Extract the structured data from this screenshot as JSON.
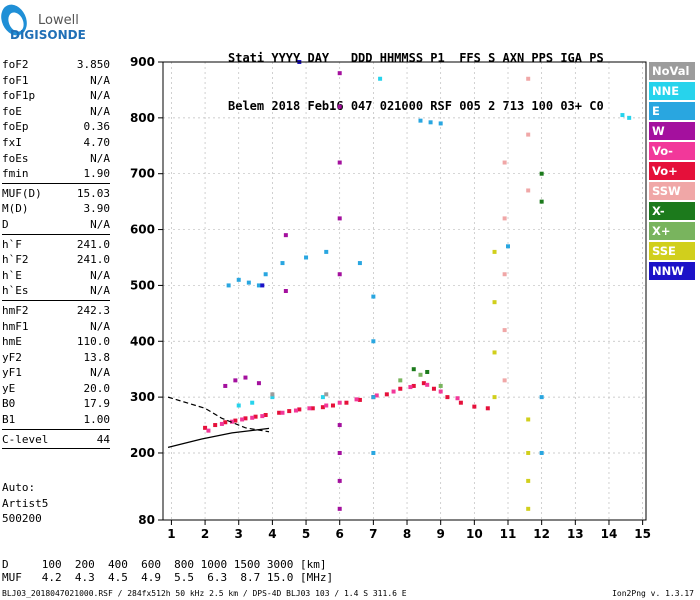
{
  "logo": {
    "top": "Lowell",
    "bottom": "DIGISONDE"
  },
  "header": {
    "labels": "Stati YYYY DAY   DDD HHMMSS P1  FFS S AXN PPS IGA PS",
    "values": "Belem 2018 Feb16 047 021000 RSF 005 2 713 100 03+ C0"
  },
  "params": [
    {
      "name": "foF2",
      "value": "3.850"
    },
    {
      "name": "foF1",
      "value": "N/A"
    },
    {
      "name": "foF1p",
      "value": "N/A"
    },
    {
      "name": "foE",
      "value": "N/A"
    },
    {
      "name": "foEp",
      "value": "0.36"
    },
    {
      "name": "fxI",
      "value": "4.70"
    },
    {
      "name": "foEs",
      "value": "N/A"
    },
    {
      "name": "fmin",
      "value": "1.90"
    },
    {
      "sep": true
    },
    {
      "name": "MUF(D)",
      "value": "15.03"
    },
    {
      "name": "M(D)",
      "value": "3.90"
    },
    {
      "name": "D",
      "value": "N/A"
    },
    {
      "sep": true
    },
    {
      "name": "h`F",
      "value": "241.0"
    },
    {
      "name": "h`F2",
      "value": "241.0"
    },
    {
      "name": "h`E",
      "value": "N/A"
    },
    {
      "name": "h`Es",
      "value": "N/A"
    },
    {
      "sep": true
    },
    {
      "name": "hmF2",
      "value": "242.3"
    },
    {
      "name": "hmF1",
      "value": "N/A"
    },
    {
      "name": "hmE",
      "value": "110.0"
    },
    {
      "name": "yF2",
      "value": "13.8"
    },
    {
      "name": "yF1",
      "value": "N/A"
    },
    {
      "name": "yE",
      "value": "20.0"
    },
    {
      "name": "B0",
      "value": "17.9"
    },
    {
      "name": "B1",
      "value": "1.00"
    },
    {
      "sep": true
    },
    {
      "name": "C-level",
      "value": "44"
    },
    {
      "sep": true
    }
  ],
  "auto": {
    "line1": "Auto:",
    "line2": "Artist5",
    "line3": "500200"
  },
  "legend": [
    {
      "label": "NoVal",
      "color": "#9c9c9c"
    },
    {
      "label": "NNE",
      "color": "#27d3ec"
    },
    {
      "label": "E",
      "color": "#29a6e0"
    },
    {
      "label": "W",
      "color": "#a4109e"
    },
    {
      "label": "Vo-",
      "color": "#f2389a"
    },
    {
      "label": "Vo+",
      "color": "#e5103a"
    },
    {
      "label": "SSW",
      "color": "#f0a7a7"
    },
    {
      "label": "X-",
      "color": "#1c7a1c"
    },
    {
      "label": "X+",
      "color": "#79b45e"
    },
    {
      "label": "SSE",
      "color": "#d1cf1c"
    },
    {
      "label": "NNW",
      "color": "#1c12c8"
    }
  ],
  "freq_table": {
    "d_row": "D     100  200  400  600  800 1000 1500 3000 [km]",
    "muf_row": "MUF   4.2  4.3  4.5  4.9  5.5  6.3  8.7 15.0 [MHz]"
  },
  "footer": {
    "left": "BLJ03_2018047021000.RSF / 284fx512h 50 kHz 2.5 km / DPS-4D BLJ03 103 / 1.4 S 311.6 E",
    "right": "Ion2Png v. 1.3.17"
  },
  "chart_data": {
    "type": "scatter",
    "title": "",
    "xlabel": "",
    "ylabel": "",
    "x_ticks": [
      1,
      2,
      3,
      4,
      5,
      6,
      7,
      8,
      9,
      10,
      11,
      12,
      13,
      14,
      15
    ],
    "y_ticks": [
      80,
      200,
      300,
      400,
      500,
      600,
      700,
      800,
      900
    ],
    "xlim": [
      0.75,
      15.1
    ],
    "ylim": [
      80,
      900
    ],
    "series": [
      {
        "name": "Vo+",
        "color": "#e5103a",
        "points": [
          [
            2.0,
            245
          ],
          [
            2.3,
            250
          ],
          [
            2.6,
            255
          ],
          [
            2.9,
            258
          ],
          [
            3.2,
            262
          ],
          [
            3.5,
            265
          ],
          [
            3.8,
            268
          ],
          [
            4.2,
            272
          ],
          [
            4.5,
            275
          ],
          [
            4.8,
            278
          ],
          [
            5.2,
            280
          ],
          [
            5.5,
            282
          ],
          [
            5.8,
            285
          ],
          [
            6.2,
            290
          ],
          [
            6.6,
            295
          ],
          [
            7.0,
            300
          ],
          [
            7.4,
            305
          ],
          [
            7.8,
            315
          ],
          [
            8.2,
            320
          ],
          [
            8.5,
            325
          ],
          [
            8.8,
            315
          ],
          [
            9.2,
            300
          ],
          [
            9.6,
            290
          ],
          [
            10.0,
            283
          ],
          [
            10.4,
            280
          ]
        ]
      },
      {
        "name": "Vo-",
        "color": "#f2389a",
        "points": [
          [
            2.1,
            240
          ],
          [
            2.5,
            252
          ],
          [
            2.8,
            256
          ],
          [
            3.1,
            260
          ],
          [
            3.4,
            263
          ],
          [
            3.7,
            266
          ],
          [
            4.3,
            272
          ],
          [
            4.7,
            276
          ],
          [
            5.1,
            280
          ],
          [
            5.6,
            285
          ],
          [
            6.0,
            290
          ],
          [
            6.5,
            296
          ],
          [
            7.1,
            303
          ],
          [
            7.6,
            310
          ],
          [
            8.1,
            318
          ],
          [
            8.6,
            322
          ],
          [
            9.0,
            310
          ],
          [
            9.5,
            298
          ]
        ]
      },
      {
        "name": "W",
        "color": "#a4109e",
        "points": [
          [
            2.6,
            320
          ],
          [
            2.9,
            330
          ],
          [
            3.2,
            335
          ],
          [
            3.6,
            325
          ],
          [
            6.0,
            880
          ],
          [
            6.0,
            820
          ],
          [
            6.0,
            720
          ],
          [
            6.0,
            620
          ],
          [
            6.0,
            520
          ],
          [
            6.0,
            250
          ],
          [
            6.0,
            200
          ],
          [
            6.0,
            150
          ],
          [
            6.0,
            100
          ],
          [
            4.4,
            490
          ],
          [
            4.4,
            590
          ]
        ]
      },
      {
        "name": "E",
        "color": "#29a6e0",
        "points": [
          [
            2.7,
            500
          ],
          [
            3.0,
            510
          ],
          [
            3.3,
            505
          ],
          [
            3.6,
            500
          ],
          [
            3.8,
            520
          ],
          [
            4.3,
            540
          ],
          [
            5.0,
            550
          ],
          [
            5.6,
            560
          ],
          [
            6.6,
            540
          ],
          [
            7.0,
            480
          ],
          [
            7.0,
            400
          ],
          [
            7.0,
            300
          ],
          [
            7.0,
            200
          ],
          [
            8.4,
            795
          ],
          [
            8.7,
            792
          ],
          [
            9.0,
            790
          ],
          [
            11.0,
            570
          ],
          [
            12.0,
            300
          ],
          [
            12.0,
            200
          ]
        ]
      },
      {
        "name": "NNE",
        "color": "#27d3ec",
        "points": [
          [
            3.0,
            285
          ],
          [
            3.4,
            290
          ],
          [
            4.0,
            300
          ],
          [
            5.5,
            300
          ],
          [
            7.2,
            870
          ],
          [
            14.4,
            805
          ],
          [
            14.6,
            800
          ]
        ]
      },
      {
        "name": "SSE",
        "color": "#d1cf1c",
        "points": [
          [
            10.6,
            560
          ],
          [
            10.6,
            470
          ],
          [
            10.6,
            380
          ],
          [
            10.6,
            300
          ],
          [
            11.6,
            260
          ],
          [
            11.6,
            200
          ],
          [
            11.6,
            150
          ],
          [
            11.6,
            100
          ]
        ]
      },
      {
        "name": "SSW",
        "color": "#f0a7a7",
        "points": [
          [
            10.9,
            720
          ],
          [
            10.9,
            620
          ],
          [
            10.9,
            520
          ],
          [
            10.9,
            420
          ],
          [
            10.9,
            330
          ],
          [
            11.6,
            870
          ],
          [
            11.6,
            770
          ],
          [
            11.6,
            670
          ]
        ]
      },
      {
        "name": "X-",
        "color": "#1c7a1c",
        "points": [
          [
            8.2,
            350
          ],
          [
            8.6,
            345
          ],
          [
            12.0,
            700
          ],
          [
            12.0,
            650
          ]
        ]
      },
      {
        "name": "X+",
        "color": "#79b45e",
        "points": [
          [
            7.8,
            330
          ],
          [
            8.4,
            340
          ],
          [
            9.0,
            320
          ]
        ]
      },
      {
        "name": "NNW",
        "color": "#1c12c8",
        "points": [
          [
            3.7,
            500
          ],
          [
            4.8,
            900
          ]
        ]
      },
      {
        "name": "NoVal",
        "color": "#9c9c9c",
        "points": [
          [
            4.0,
            305
          ],
          [
            5.6,
            305
          ]
        ]
      }
    ],
    "traces": [
      {
        "x": [
          0.9,
          2.0,
          2.5,
          3.2,
          3.9
        ],
        "y": [
          300,
          280,
          262,
          245,
          238
        ]
      },
      {
        "x": [
          0.9,
          1.9,
          2.8,
          3.9
        ],
        "y": [
          210,
          225,
          236,
          244
        ]
      }
    ]
  }
}
